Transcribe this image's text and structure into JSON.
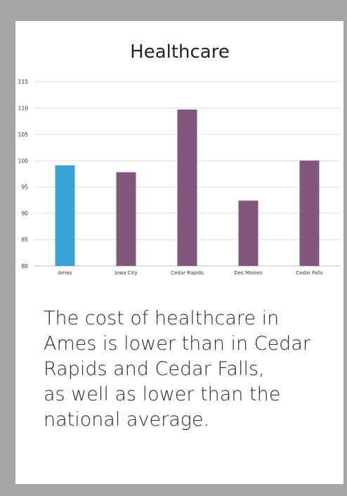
{
  "chart_data": {
    "type": "bar",
    "title": "Healthcare",
    "categories": [
      "Ames",
      "Iowa City",
      "Cedar Rapids",
      "Des Moines",
      "Cedar Falls"
    ],
    "values": [
      99.1,
      97.8,
      109.7,
      92.4,
      100.0
    ],
    "highlight_category": "Ames",
    "colors": {
      "highlight": "#36a2d6",
      "default": "#82567d",
      "grid": "#dddddd",
      "axis": "#bbbbbb",
      "text": "#333333"
    },
    "ylim": [
      80,
      115
    ],
    "yticks": [
      80,
      85,
      90,
      95,
      100,
      105,
      110,
      115
    ],
    "grid": true,
    "legend": "none"
  },
  "caption": {
    "lines": [
      "The cost of healthcare in",
      "Ames is lower than in Cedar",
      "Rapids and Cedar Falls,",
      "as well as lower than the",
      "national average."
    ]
  }
}
